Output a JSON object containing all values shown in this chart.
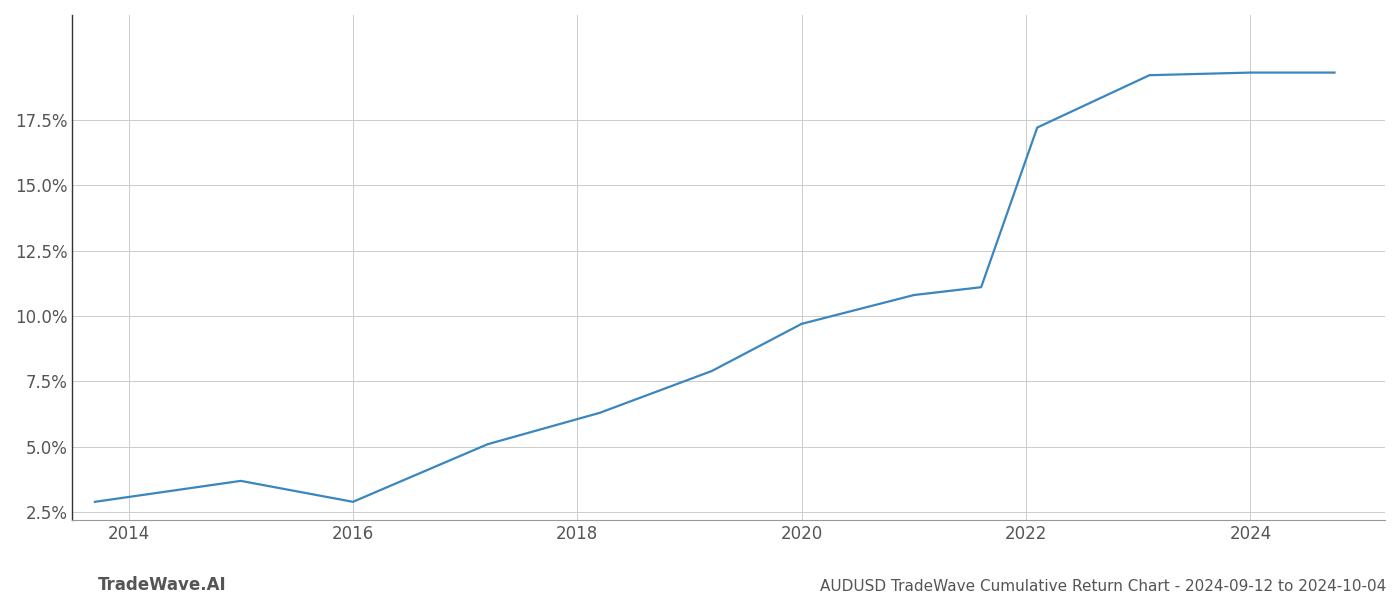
{
  "title": "AUDUSD TradeWave Cumulative Return Chart - 2024-09-12 to 2024-10-04",
  "watermark": "TradeWave.AI",
  "line_color": "#3a86be",
  "background_color": "#ffffff",
  "grid_color": "#cccccc",
  "x_values": [
    2013.7,
    2015.0,
    2016.0,
    2017.2,
    2018.2,
    2019.2,
    2020.0,
    2021.0,
    2021.6,
    2022.1,
    2023.1,
    2024.0,
    2024.75
  ],
  "y_values": [
    2.9,
    3.7,
    2.9,
    5.1,
    6.3,
    7.9,
    9.7,
    10.8,
    11.1,
    17.2,
    19.2,
    19.3,
    19.3
  ],
  "x_ticks": [
    2014,
    2016,
    2018,
    2020,
    2022,
    2024
  ],
  "y_ticks": [
    2.5,
    5.0,
    7.5,
    10.0,
    12.5,
    15.0,
    17.5
  ],
  "ylim": [
    2.2,
    21.5
  ],
  "xlim": [
    2013.5,
    2025.2
  ],
  "line_width": 1.6,
  "title_fontsize": 11,
  "tick_fontsize": 12,
  "watermark_fontsize": 12
}
